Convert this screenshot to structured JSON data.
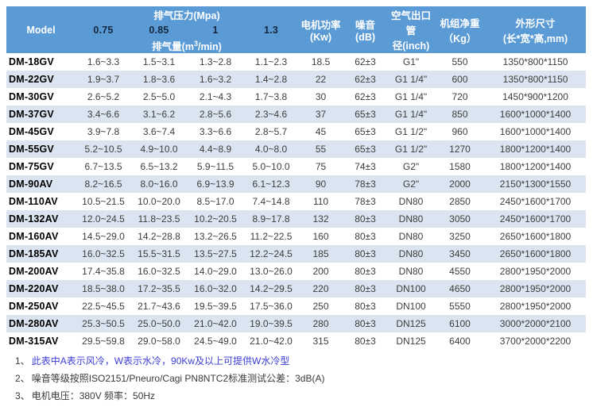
{
  "colors": {
    "header_bg": "#5b9bd5",
    "stripe_bg": "#dbe5f1",
    "header_text": "#ffffff",
    "header_number_text": "#16263e",
    "note_link": "#3c3cd6"
  },
  "table": {
    "header": {
      "model": "Model",
      "pressure_group": "排气压力(Mpa)",
      "pressures": [
        "0.75",
        "0.85",
        "1",
        "1.3"
      ],
      "flow_label_prefix": "排气量(m",
      "flow_label_sup": "3",
      "flow_label_suffix": "/min)",
      "power": {
        "line1": "电机功率",
        "line2": "(Kw)"
      },
      "noise": {
        "line1": "噪音",
        "line2": "(dB)"
      },
      "outlet": {
        "line1": "空气出口管",
        "line2": "径(inch)"
      },
      "weight": {
        "line1": "机组净重",
        "line2": "（Kg）"
      },
      "dimensions": {
        "line1": "外形尺寸",
        "line2": "(长*宽*高,mm)"
      }
    },
    "rows": [
      [
        "DM-18GV",
        "1.6~3.3",
        "1.5~3.1",
        "1.3~2.8",
        "1.1~2.3",
        "18.5",
        "62±3",
        "G1\"",
        "550",
        "1350*800*1150"
      ],
      [
        "DM-22GV",
        "1.9~3.7",
        "1.8~3.6",
        "1.6~3.2",
        "1.4~2.8",
        "22",
        "62±3",
        "G1 1/4\"",
        "600",
        "1350*800*1150"
      ],
      [
        "DM-30GV",
        "2.6~5.2",
        "2.5~5.0",
        "2.1~4.3",
        "1.7~3.8",
        "30",
        "62±3",
        "G1 1/4\"",
        "720",
        "1450*900*1200"
      ],
      [
        "DM-37GV",
        "3.4~6.6",
        "3.1~6.2",
        "2.8~5.6",
        "2.3~4.6",
        "37",
        "65±3",
        "G1 1/4\"",
        "850",
        "1600*1000*1400"
      ],
      [
        "DM-45GV",
        "3.9~7.8",
        "3.6~7.4",
        "3.3~6.6",
        "2.8~5.7",
        "45",
        "65±3",
        "G1 1/2\"",
        "960",
        "1600*1000*1400"
      ],
      [
        "DM-55GV",
        "5.2~10.5",
        "4.9~10.0",
        "4.4~8.9",
        "4.0~8.0",
        "55",
        "65±3",
        "G1 1/2\"",
        "1270",
        "1800*1200*1400"
      ],
      [
        "DM-75GV",
        "6.7~13.5",
        "6.5~13.2",
        "5.9~11.5",
        "5.0~10.0",
        "75",
        "74±3",
        "G2\"",
        "1580",
        "1800*1200*1400"
      ],
      [
        "DM-90AV",
        "8.2~16.5",
        "8.0~16.0",
        "6.9~13.9",
        "6.1~12.3",
        "90",
        "78±3",
        "G2\"",
        "2000",
        "2150*1300*1550"
      ],
      [
        "DM-110AV",
        "10.5~21.5",
        "10.0~20.0",
        "8.5~17.0",
        "7.4~14.8",
        "110",
        "78±3",
        "DN80",
        "2850",
        "2450*1600*1700"
      ],
      [
        "DM-132AV",
        "12.0~24.5",
        "11.8~23.5",
        "10.2~20.5",
        "8.9~17.8",
        "132",
        "80±3",
        "DN80",
        "3050",
        "2450*1600*1700"
      ],
      [
        "DM-160AV",
        "14.5~29.0",
        "14.2~28.8",
        "13.2~26.5",
        "11.2~22.5",
        "160",
        "80±3",
        "DN80",
        "3250",
        "2650*1600*1800"
      ],
      [
        "DM-185AV",
        "16.0~32.5",
        "15.5~31.5",
        "13.5~27.5",
        "12.2~24.5",
        "185",
        "80±3",
        "DN80",
        "3450",
        "2650*1600*1800"
      ],
      [
        "DM-200AV",
        "17.4~35.8",
        "16.0~32.5",
        "14.0~29.0",
        "13.0~26.0",
        "200",
        "80±3",
        "DN80",
        "4550",
        "2800*1950*2000"
      ],
      [
        "DM-220AV",
        "18.5~38.0",
        "17.2~35.5",
        "16.0~32.0",
        "14.2~29.5",
        "220",
        "80±3",
        "DN100",
        "4650",
        "2800*1950*2000"
      ],
      [
        "DM-250AV",
        "22.5~45.5",
        "21.7~43.6",
        "19.5~39.5",
        "17.5~36.0",
        "250",
        "80±3",
        "DN100",
        "5550",
        "2800*1950*2000"
      ],
      [
        "DM-280AV",
        "25.3~50.5",
        "25.0~50.0",
        "21.0~42.0",
        "19.0~39.5",
        "280",
        "80±3",
        "DN125",
        "6100",
        "3000*2000*2100"
      ],
      [
        "DM-315AV",
        "29.5~59.8",
        "29.0~58.0",
        "24.5~49.0",
        "21.0~42.0",
        "315",
        "80±3",
        "DN125",
        "6400",
        "3700*2000*2200"
      ]
    ]
  },
  "notes": [
    {
      "num": "1、",
      "text": "此表中A表示风冷，W表示水冷，90Kw及以上可提供W水冷型"
    },
    {
      "num": "2、",
      "text": "噪音等级按照ISO2151/Pneuro/Cagi PN8NTC2标准测试公差：3dB(A)"
    },
    {
      "num": "3、",
      "text": "电机电压：380V 频率：50Hz"
    }
  ]
}
